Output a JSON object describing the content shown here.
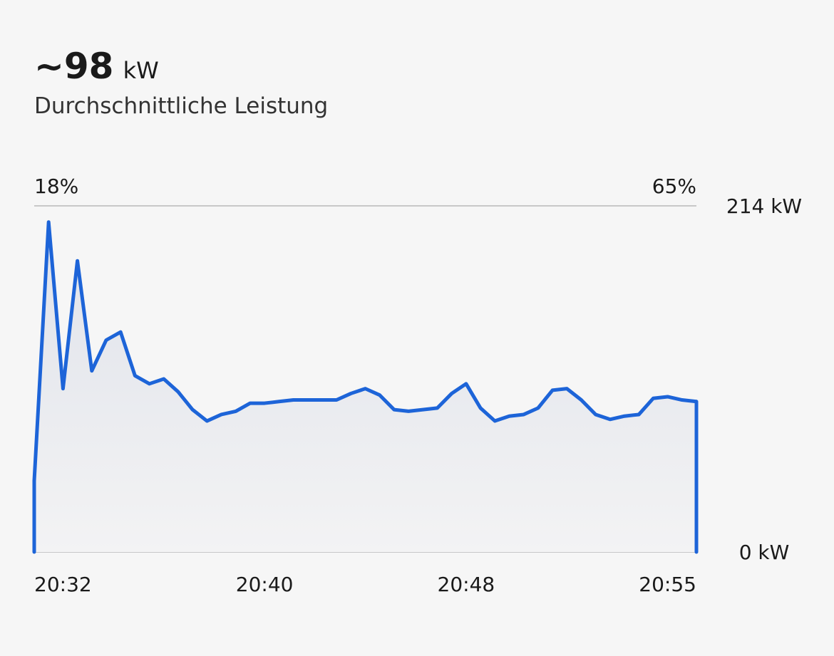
{
  "chart_data": {
    "type": "area",
    "headline": {
      "value": "~98",
      "unit": "kW"
    },
    "subtitle": "Durchschnittliche Leistung",
    "annotations": [
      "18%",
      "65%"
    ],
    "categories": [
      "20:32",
      null,
      null,
      null,
      null,
      null,
      null,
      null,
      null,
      null,
      null,
      null,
      null,
      null,
      null,
      null,
      "20:40",
      null,
      null,
      null,
      null,
      null,
      null,
      null,
      null,
      null,
      null,
      null,
      null,
      null,
      "20:48",
      null,
      null,
      null,
      null,
      null,
      null,
      null,
      null,
      null,
      null,
      null,
      null,
      null,
      null,
      null,
      "20:55"
    ],
    "series": [
      {
        "name": "Leistung",
        "color": "#1d64d8",
        "values": [
          44,
          204,
          101,
          180,
          112,
          131,
          136,
          109,
          104,
          107,
          99,
          88,
          81,
          85,
          87,
          92,
          92,
          93,
          94,
          94,
          94,
          94,
          98,
          101,
          97,
          88,
          87,
          88,
          89,
          98,
          104,
          89,
          81,
          84,
          85,
          89,
          100,
          101,
          94,
          85,
          82,
          84,
          85,
          95,
          96,
          94,
          93
        ]
      }
    ],
    "ylim": [
      0,
      214
    ],
    "yticks": [
      {
        "value": 0,
        "label": "0 kW"
      },
      {
        "value": 214,
        "label": "214 kW"
      }
    ],
    "grid": true
  }
}
